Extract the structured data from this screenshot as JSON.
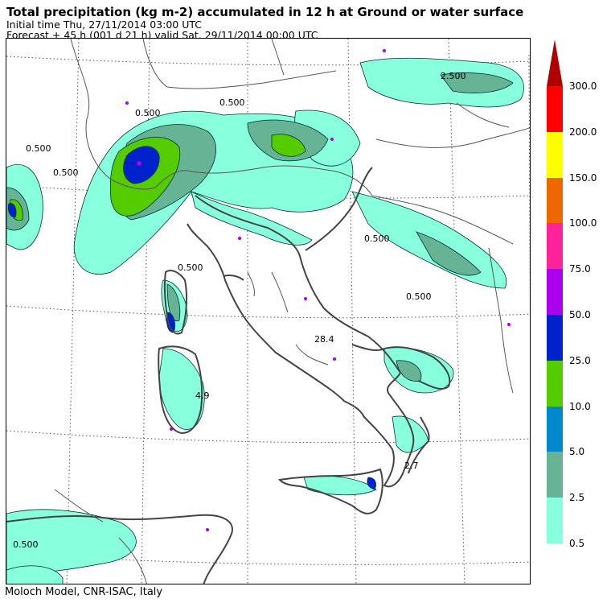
{
  "header": {
    "title": "Total precipitation (kg m-2) accumulated in  12 h at Ground or water surface",
    "initial_time": "Initial time  Thu, 27/11/2014  03:00 UTC",
    "forecast": "Forecast  +  45 h  (001 d 21 h)  valid Sat, 29/11/2014 00:00 UTC"
  },
  "footer": {
    "credit": "Moloch Model, CNR-ISAC, Italy"
  },
  "legend": {
    "arrow_color": "#b00000",
    "bins": [
      {
        "label": "300.0",
        "color": "#ff0000"
      },
      {
        "label": "200.0",
        "color": "#ffff00"
      },
      {
        "label": "150.0",
        "color": "#ee6600"
      },
      {
        "label": "100.0",
        "color": "#ff2299"
      },
      {
        "label": "75.0",
        "color": "#aa00ee"
      },
      {
        "label": "50.0",
        "color": "#0022cc"
      },
      {
        "label": "25.0",
        "color": "#55cc00"
      },
      {
        "label": "10.0",
        "color": "#0088cc"
      },
      {
        "label": "5.0",
        "color": "#66b395"
      },
      {
        "label": "2.5",
        "color": "#88ffdd"
      },
      {
        "label": "0.5",
        "color": ""
      }
    ]
  },
  "map": {
    "contour_labels": [
      "0.500",
      "0.500",
      "0.500",
      "0.500",
      "0.500",
      "0.500",
      "0.500",
      "2.500",
      "0.500",
      "28.4",
      "4.9",
      "2.7"
    ],
    "colors": {
      "coast": "#444444",
      "border": "#555555",
      "contour": "#003333"
    }
  }
}
